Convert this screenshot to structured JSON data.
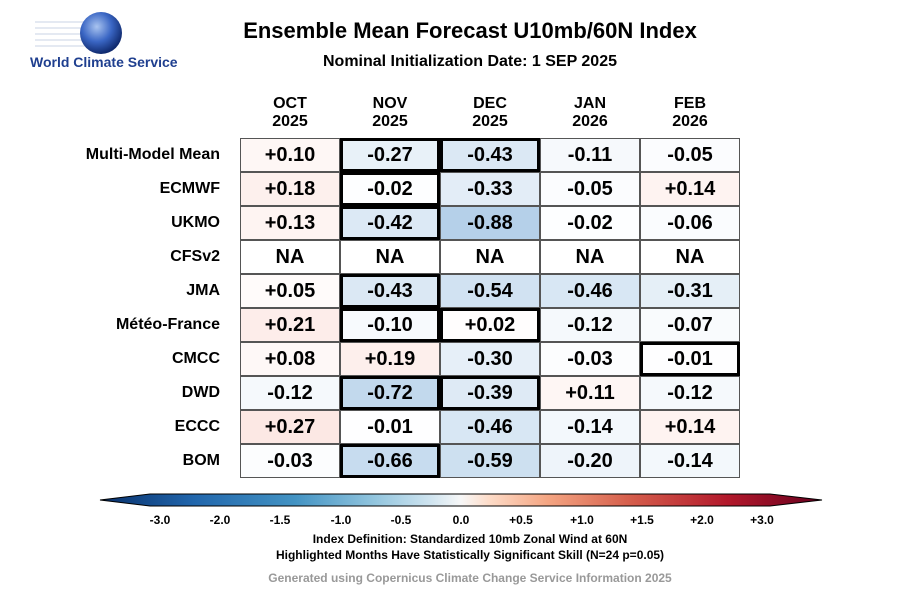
{
  "header": {
    "logo_text": "World Climate Service",
    "title": "Ensemble Mean Forecast U10mb/60N Index",
    "subtitle": "Nominal Initialization Date: 1 SEP 2025"
  },
  "chart_data": {
    "type": "table",
    "columns": [
      "OCT\n2025",
      "NOV\n2025",
      "DEC\n2025",
      "JAN\n2026",
      "FEB\n2026"
    ],
    "rows": [
      {
        "model": "Multi-Model Mean",
        "values": [
          "+0.10",
          "-0.27",
          "-0.43",
          "-0.11",
          "-0.05"
        ],
        "significant": [
          false,
          true,
          true,
          false,
          false
        ]
      },
      {
        "model": "ECMWF",
        "values": [
          "+0.18",
          "-0.02",
          "-0.33",
          "-0.05",
          "+0.14"
        ],
        "significant": [
          false,
          true,
          false,
          false,
          false
        ]
      },
      {
        "model": "UKMO",
        "values": [
          "+0.13",
          "-0.42",
          "-0.88",
          "-0.02",
          "-0.06"
        ],
        "significant": [
          false,
          true,
          false,
          false,
          false
        ]
      },
      {
        "model": "CFSv2",
        "values": [
          "NA",
          "NA",
          "NA",
          "NA",
          "NA"
        ],
        "significant": [
          false,
          false,
          false,
          false,
          false
        ]
      },
      {
        "model": "JMA",
        "values": [
          "+0.05",
          "-0.43",
          "-0.54",
          "-0.46",
          "-0.31"
        ],
        "significant": [
          false,
          true,
          false,
          false,
          false
        ]
      },
      {
        "model": "Météo-France",
        "values": [
          "+0.21",
          "-0.10",
          "+0.02",
          "-0.12",
          "-0.07"
        ],
        "significant": [
          false,
          true,
          true,
          false,
          false
        ]
      },
      {
        "model": "CMCC",
        "values": [
          "+0.08",
          "+0.19",
          "-0.30",
          "-0.03",
          "-0.01"
        ],
        "significant": [
          false,
          false,
          false,
          false,
          true
        ]
      },
      {
        "model": "DWD",
        "values": [
          "-0.12",
          "-0.72",
          "-0.39",
          "+0.11",
          "-0.12"
        ],
        "significant": [
          false,
          true,
          true,
          false,
          false
        ]
      },
      {
        "model": "ECCC",
        "values": [
          "+0.27",
          "-0.01",
          "-0.46",
          "-0.14",
          "+0.14"
        ],
        "significant": [
          false,
          false,
          false,
          false,
          false
        ]
      },
      {
        "model": "BOM",
        "values": [
          "-0.03",
          "-0.66",
          "-0.59",
          "-0.20",
          "-0.14"
        ],
        "significant": [
          false,
          true,
          false,
          false,
          false
        ]
      }
    ],
    "colorbar": {
      "ticks": [
        "-3.0",
        "-2.0",
        "-1.5",
        "-1.0",
        "-0.5",
        "0.0",
        "+0.5",
        "+1.0",
        "+1.5",
        "+2.0",
        "+3.0"
      ],
      "colors": [
        "#08306b",
        "#2166ac",
        "#4393c3",
        "#92c5de",
        "#d1e5f0",
        "#f7f7f7",
        "#fddbc7",
        "#f4a582",
        "#d6604d",
        "#b2182b",
        "#67001f"
      ]
    }
  },
  "footer": {
    "line1": "Index Definition: Standardized 10mb Zonal Wind at 60N",
    "line2": "Highlighted Months Have Statistically Significant Skill (N=24 p=0.05)",
    "line3": "Generated using Copernicus Climate Change Service Information 2025"
  }
}
